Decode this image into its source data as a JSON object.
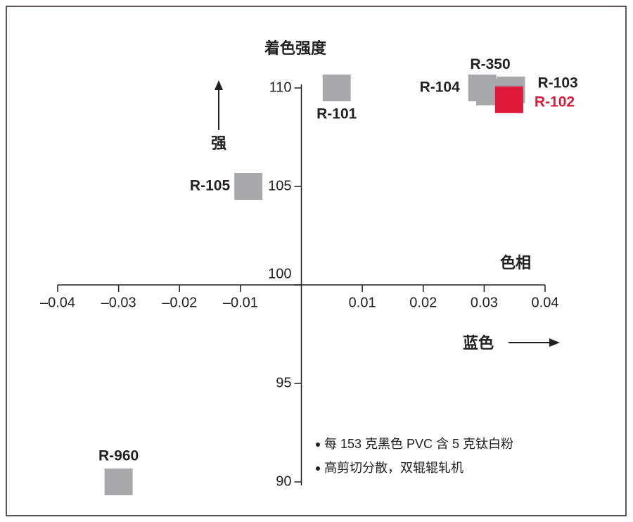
{
  "chart_data": {
    "type": "scatter",
    "title": "着色强度",
    "y_axis_label": "强",
    "x_axis_label": "色相",
    "x_direction_label": "蓝色",
    "notes": [
      "每 153 克黑色 PVC 含 5 克钛白粉",
      "高剪切分散，双辊辊轧机"
    ],
    "xlim": [
      -0.04,
      0.04
    ],
    "ylim": [
      90,
      110
    ],
    "xticks": [
      {
        "value": -0.04,
        "label": "–0.04"
      },
      {
        "value": -0.03,
        "label": "–0.03"
      },
      {
        "value": -0.02,
        "label": "–0.02"
      },
      {
        "value": -0.01,
        "label": "–0.01"
      },
      0.01,
      0.02,
      0.03,
      0.04
    ],
    "yticks": [
      90,
      95,
      100,
      105,
      110
    ],
    "series": [
      {
        "name": "R-101",
        "color": "#a7a9ac",
        "x": [
          0.0058
        ],
        "values": [
          110
        ]
      },
      {
        "name": "R-105",
        "color": "#a7a9ac",
        "x": [
          -0.0087
        ],
        "values": [
          105
        ]
      },
      {
        "name": "R-960",
        "color": "#a7a9ac",
        "x": [
          -0.03
        ],
        "values": [
          90
        ]
      },
      {
        "name": "R-104",
        "color": "#a7a9ac",
        "x": [
          0.0297
        ],
        "values": [
          110
        ]
      },
      {
        "name": "R-350",
        "color": "#a7a9ac",
        "x": [
          0.031
        ],
        "values": [
          109.8
        ]
      },
      {
        "name": "R-103",
        "color": "#a7a9ac",
        "x": [
          0.0344
        ],
        "values": [
          109.9
        ]
      },
      {
        "name": "R-102",
        "color": "#e0193a",
        "x": [
          0.0341
        ],
        "values": [
          109.4
        ]
      }
    ]
  }
}
